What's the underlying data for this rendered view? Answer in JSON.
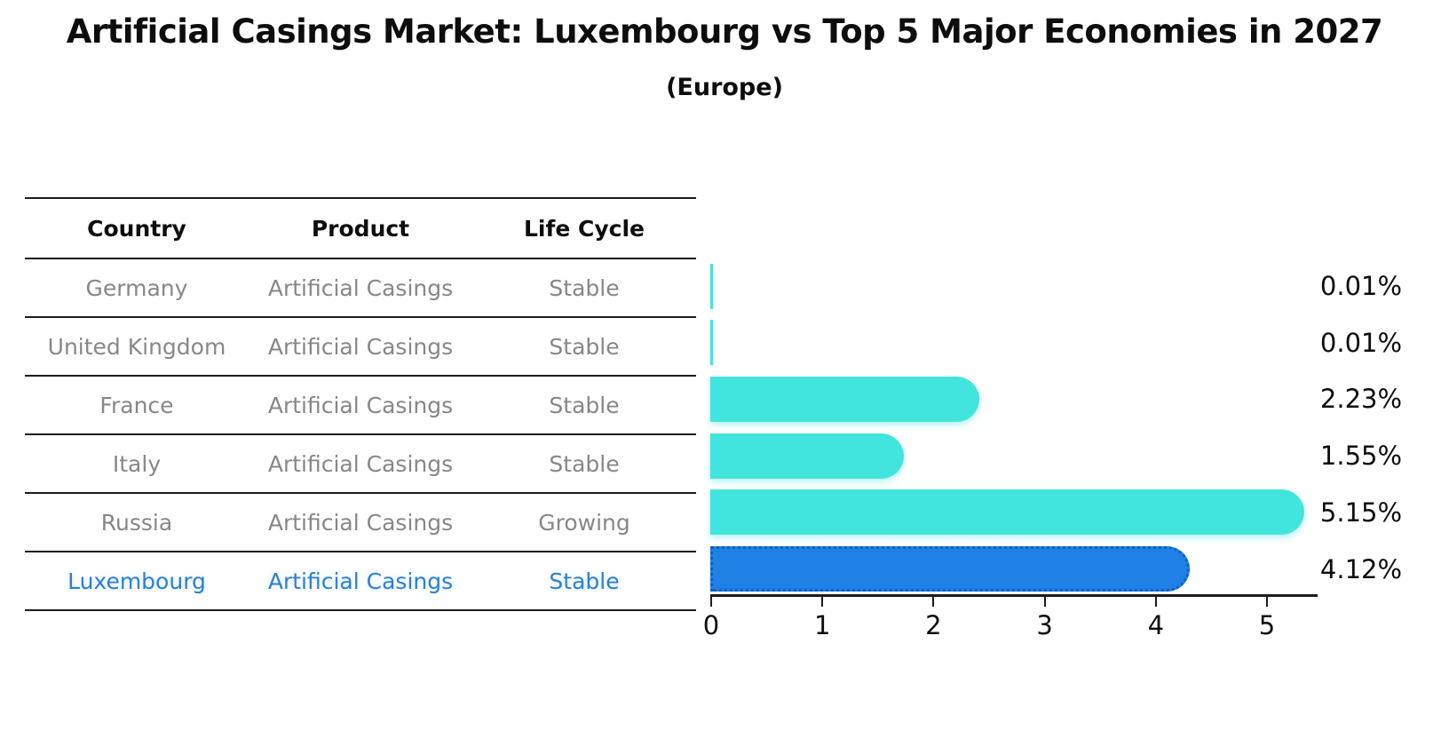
{
  "title": "Artificial Casings Market: Luxembourg vs Top 5 Major Economies in 2027",
  "subtitle": "(Europe)",
  "table": {
    "headers": [
      "Country",
      "Product",
      "Life Cycle"
    ],
    "rows": [
      {
        "country": "Germany",
        "product": "Artificial Casings",
        "life_cycle": "Stable",
        "highlighted": false
      },
      {
        "country": "United Kingdom",
        "product": "Artificial Casings",
        "life_cycle": "Stable",
        "highlighted": false
      },
      {
        "country": "France",
        "product": "Artificial Casings",
        "life_cycle": "Stable",
        "highlighted": false
      },
      {
        "country": "Italy",
        "product": "Artificial Casings",
        "life_cycle": "Stable",
        "highlighted": false
      },
      {
        "country": "Russia",
        "product": "Artificial Casings",
        "life_cycle": "Growing",
        "highlighted": false
      },
      {
        "country": "Luxembourg",
        "product": "Artificial Casings",
        "life_cycle": "Stable",
        "highlighted": true
      }
    ]
  },
  "chart_data": {
    "type": "bar",
    "orientation": "horizontal",
    "title": "Artificial Casings Market: Luxembourg vs Top 5 Major Economies in 2027",
    "subtitle": "(Europe)",
    "categories": [
      "Germany",
      "United Kingdom",
      "France",
      "Italy",
      "Russia",
      "Luxembourg"
    ],
    "values": [
      0.01,
      0.01,
      2.23,
      1.55,
      5.15,
      4.12
    ],
    "value_labels": [
      "0.01%",
      "0.01%",
      "2.23%",
      "1.55%",
      "5.15%",
      "4.12%"
    ],
    "highlight_index": 5,
    "xlabel": "",
    "ylabel": "",
    "xlim": [
      0,
      5.45
    ],
    "xticks": [
      0,
      1,
      2,
      3,
      4,
      5
    ],
    "grid": false,
    "legend": "none",
    "bar_color_default": "#42e5dd",
    "bar_color_highlight": "#1f80e6",
    "highlight_border_color": "#0f5ec4",
    "label_color": "#0d0d0d"
  }
}
